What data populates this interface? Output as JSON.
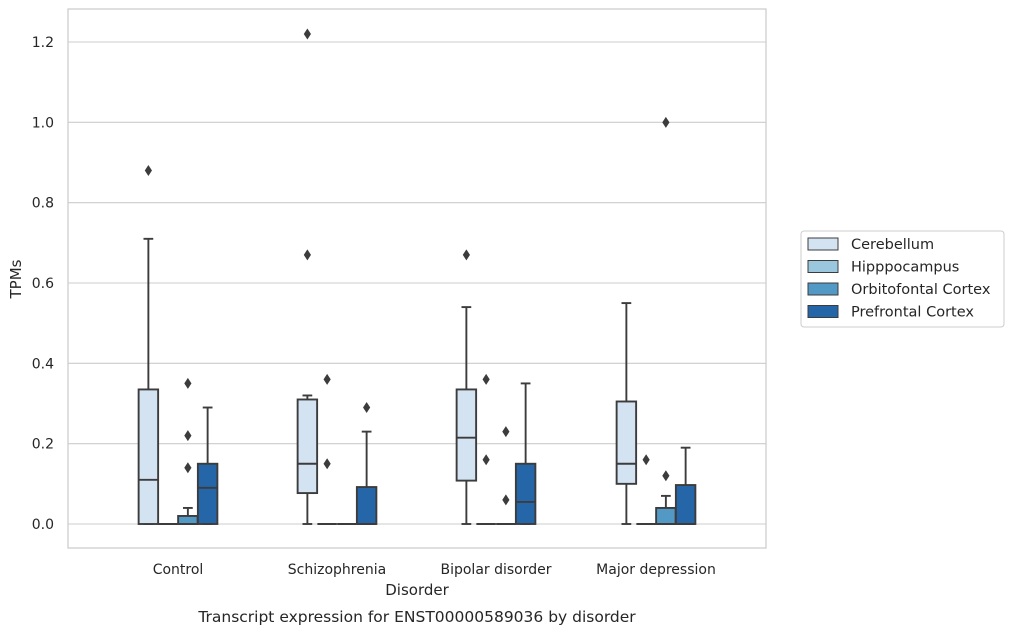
{
  "chart_data": {
    "type": "box",
    "xlabel": "Disorder",
    "ylabel": "TPMs",
    "caption": "Transcript expression for ENST00000589036 by disorder",
    "ylim": [
      -0.06,
      1.28
    ],
    "yticks": [
      "0.0",
      "0.2",
      "0.4",
      "0.6",
      "0.8",
      "1.0",
      "1.2"
    ],
    "ytick_values": [
      0.0,
      0.2,
      0.4,
      0.6,
      0.8,
      1.0,
      1.2
    ],
    "grid": "horizontal",
    "legend_position": "right",
    "categories": [
      "Control",
      "Schizophrenia",
      "Bipolar disorder",
      "Major depression"
    ],
    "series": [
      {
        "name": "Cerebellum",
        "color": "#d4e3f2",
        "boxes": [
          {
            "whislo": 0.0,
            "q1": 0.0,
            "med": 0.11,
            "q3": 0.335,
            "whishi": 0.71,
            "fliers": [
              0.88
            ]
          },
          {
            "whislo": 0.0,
            "q1": 0.077,
            "med": 0.15,
            "q3": 0.31,
            "whishi": 0.32,
            "fliers": [
              0.67,
              1.22
            ]
          },
          {
            "whislo": 0.0,
            "q1": 0.108,
            "med": 0.215,
            "q3": 0.335,
            "whishi": 0.54,
            "fliers": [
              0.67
            ]
          },
          {
            "whislo": 0.0,
            "q1": 0.1,
            "med": 0.15,
            "q3": 0.305,
            "whishi": 0.55,
            "fliers": []
          }
        ]
      },
      {
        "name": "Hipppocampus",
        "color": "#9ac6de",
        "boxes": [
          {
            "whislo": 0.0,
            "q1": 0.0,
            "med": 0.0,
            "q3": 0.0,
            "whishi": 0.0,
            "fliers": []
          },
          {
            "whislo": 0.0,
            "q1": 0.0,
            "med": 0.0,
            "q3": 0.0,
            "whishi": 0.0,
            "fliers": [
              0.15,
              0.36
            ]
          },
          {
            "whislo": 0.0,
            "q1": 0.0,
            "med": 0.0,
            "q3": 0.0,
            "whishi": 0.0,
            "fliers": [
              0.16,
              0.36
            ]
          },
          {
            "whislo": 0.0,
            "q1": 0.0,
            "med": 0.0,
            "q3": 0.0,
            "whishi": 0.0,
            "fliers": [
              0.16
            ]
          }
        ]
      },
      {
        "name": "Orbitofontal Cortex",
        "color": "#5399c6",
        "boxes": [
          {
            "whislo": 0.0,
            "q1": 0.0,
            "med": 0.0,
            "q3": 0.02,
            "whishi": 0.04,
            "fliers": [
              0.14,
              0.22,
              0.35
            ]
          },
          {
            "whislo": 0.0,
            "q1": 0.0,
            "med": 0.0,
            "q3": 0.0,
            "whishi": 0.0,
            "fliers": []
          },
          {
            "whislo": 0.0,
            "q1": 0.0,
            "med": 0.0,
            "q3": 0.0,
            "whishi": 0.0,
            "fliers": [
              0.06,
              0.23
            ]
          },
          {
            "whislo": 0.0,
            "q1": 0.0,
            "med": 0.0,
            "q3": 0.04,
            "whishi": 0.07,
            "fliers": [
              0.12,
              1.0
            ]
          }
        ]
      },
      {
        "name": "Prefrontal Cortex",
        "color": "#2466a8",
        "boxes": [
          {
            "whislo": 0.0,
            "q1": 0.0,
            "med": 0.09,
            "q3": 0.15,
            "whishi": 0.29,
            "fliers": []
          },
          {
            "whislo": 0.0,
            "q1": 0.0,
            "med": 0.0,
            "q3": 0.092,
            "whishi": 0.23,
            "fliers": [
              0.29
            ]
          },
          {
            "whislo": 0.0,
            "q1": 0.0,
            "med": 0.055,
            "q3": 0.15,
            "whishi": 0.35,
            "fliers": []
          },
          {
            "whislo": 0.0,
            "q1": 0.0,
            "med": 0.0,
            "q3": 0.097,
            "whishi": 0.19,
            "fliers": []
          }
        ]
      }
    ]
  }
}
